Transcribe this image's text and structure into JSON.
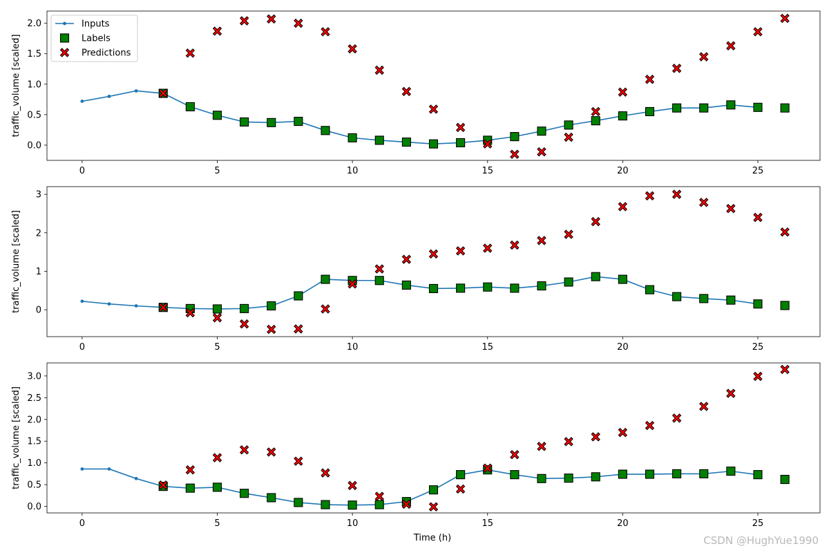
{
  "chart_data": {
    "type": "line",
    "xlabel": "Time (h)",
    "ylabel": "traffic_volume [scaled]",
    "xlim": [
      -1.3,
      27.3
    ],
    "xticks": [
      0,
      5,
      10,
      15,
      20,
      25
    ],
    "legend": {
      "location": "top-left",
      "entries": [
        "Inputs",
        "Labels",
        "Predictions"
      ]
    },
    "colors": {
      "inputs": "#1f77b4",
      "labels": "#008000",
      "predictions": "#ff0000",
      "edge": "#000000"
    },
    "watermark": "CSDN @HughYue1990",
    "panels": [
      {
        "ylim": [
          -0.25,
          2.2
        ],
        "yticks": [
          0.0,
          0.5,
          1.0,
          1.5,
          2.0
        ],
        "inputs": {
          "x": [
            0,
            1,
            2,
            3,
            4,
            5,
            6,
            7,
            8,
            9,
            10,
            11,
            12,
            13,
            14,
            15,
            16,
            17,
            18,
            19,
            20,
            21,
            22,
            23,
            24,
            25
          ],
          "y": [
            0.72,
            0.8,
            0.89,
            0.85,
            0.63,
            0.49,
            0.38,
            0.37,
            0.39,
            0.24,
            0.12,
            0.08,
            0.05,
            0.02,
            0.04,
            0.08,
            0.14,
            0.23,
            0.33,
            0.4,
            0.48,
            0.55,
            0.61,
            0.61,
            0.66,
            0.62
          ]
        },
        "labels": {
          "x": [
            3,
            4,
            5,
            6,
            7,
            8,
            9,
            10,
            11,
            12,
            13,
            14,
            15,
            16,
            17,
            18,
            19,
            20,
            21,
            22,
            23,
            24,
            25,
            26
          ],
          "y": [
            0.85,
            0.63,
            0.49,
            0.38,
            0.37,
            0.39,
            0.24,
            0.12,
            0.08,
            0.05,
            0.02,
            0.04,
            0.08,
            0.14,
            0.23,
            0.33,
            0.4,
            0.48,
            0.55,
            0.61,
            0.61,
            0.66,
            0.62,
            0.61
          ]
        },
        "predictions": {
          "x": [
            3,
            4,
            5,
            6,
            7,
            8,
            9,
            10,
            11,
            12,
            13,
            14,
            15,
            16,
            17,
            18,
            19,
            20,
            21,
            22,
            23,
            24,
            25,
            26
          ],
          "y": [
            0.85,
            1.51,
            1.87,
            2.04,
            2.07,
            2.0,
            1.86,
            1.58,
            1.23,
            0.88,
            0.59,
            0.29,
            0.02,
            -0.15,
            -0.11,
            0.13,
            0.55,
            0.87,
            1.08,
            1.26,
            1.45,
            1.63,
            1.86,
            2.08
          ]
        }
      },
      {
        "ylim": [
          -0.7,
          3.2
        ],
        "yticks": [
          0,
          1,
          2,
          3
        ],
        "inputs": {
          "x": [
            0,
            1,
            2,
            3,
            4,
            5,
            6,
            7,
            8,
            9,
            10,
            11,
            12,
            13,
            14,
            15,
            16,
            17,
            18,
            19,
            20,
            21,
            22,
            23,
            24,
            25
          ],
          "y": [
            0.22,
            0.15,
            0.1,
            0.06,
            0.03,
            0.02,
            0.03,
            0.1,
            0.36,
            0.79,
            0.76,
            0.76,
            0.64,
            0.55,
            0.56,
            0.59,
            0.56,
            0.62,
            0.72,
            0.86,
            0.79,
            0.52,
            0.34,
            0.29,
            0.25,
            0.15
          ]
        },
        "labels": {
          "x": [
            3,
            4,
            5,
            6,
            7,
            8,
            9,
            10,
            11,
            12,
            13,
            14,
            15,
            16,
            17,
            18,
            19,
            20,
            21,
            22,
            23,
            24,
            25,
            26
          ],
          "y": [
            0.06,
            0.03,
            0.02,
            0.03,
            0.1,
            0.36,
            0.79,
            0.76,
            0.76,
            0.64,
            0.55,
            0.56,
            0.59,
            0.56,
            0.62,
            0.72,
            0.86,
            0.79,
            0.52,
            0.34,
            0.29,
            0.25,
            0.15,
            0.11
          ]
        },
        "predictions": {
          "x": [
            3,
            4,
            5,
            6,
            7,
            8,
            9,
            10,
            11,
            12,
            13,
            14,
            15,
            16,
            17,
            18,
            19,
            20,
            21,
            22,
            23,
            24,
            25,
            26
          ],
          "y": [
            0.06,
            -0.08,
            -0.21,
            -0.37,
            -0.51,
            -0.5,
            0.02,
            0.67,
            1.06,
            1.31,
            1.45,
            1.53,
            1.6,
            1.68,
            1.8,
            1.96,
            2.29,
            2.68,
            2.96,
            3.0,
            2.79,
            2.63,
            2.4,
            2.02
          ]
        }
      },
      {
        "ylim": [
          -0.15,
          3.3
        ],
        "yticks": [
          0.0,
          0.5,
          1.0,
          1.5,
          2.0,
          2.5,
          3.0
        ],
        "inputs": {
          "x": [
            0,
            1,
            2,
            3,
            4,
            5,
            6,
            7,
            8,
            9,
            10,
            11,
            12,
            13,
            14,
            15,
            16,
            17,
            18,
            19,
            20,
            21,
            22,
            23,
            24,
            25
          ],
          "y": [
            0.86,
            0.86,
            0.64,
            0.46,
            0.42,
            0.44,
            0.3,
            0.2,
            0.09,
            0.04,
            0.03,
            0.04,
            0.11,
            0.38,
            0.73,
            0.84,
            0.73,
            0.64,
            0.65,
            0.68,
            0.74,
            0.74,
            0.75,
            0.75,
            0.81,
            0.73
          ]
        },
        "labels": {
          "x": [
            3,
            4,
            5,
            6,
            7,
            8,
            9,
            10,
            11,
            12,
            13,
            14,
            15,
            16,
            17,
            18,
            19,
            20,
            21,
            22,
            23,
            24,
            25,
            26
          ],
          "y": [
            0.46,
            0.42,
            0.44,
            0.3,
            0.2,
            0.09,
            0.04,
            0.03,
            0.04,
            0.11,
            0.38,
            0.73,
            0.84,
            0.73,
            0.64,
            0.65,
            0.68,
            0.74,
            0.74,
            0.75,
            0.75,
            0.81,
            0.73,
            0.62
          ]
        },
        "predictions": {
          "x": [
            3,
            4,
            5,
            6,
            7,
            8,
            9,
            10,
            11,
            12,
            13,
            14,
            15,
            16,
            17,
            18,
            19,
            20,
            21,
            22,
            23,
            24,
            25,
            26
          ],
          "y": [
            0.49,
            0.84,
            1.12,
            1.3,
            1.25,
            1.04,
            0.77,
            0.48,
            0.23,
            0.05,
            -0.01,
            0.4,
            0.88,
            1.19,
            1.38,
            1.49,
            1.6,
            1.7,
            1.86,
            2.03,
            2.3,
            2.6,
            2.99,
            3.15
          ]
        }
      }
    ]
  }
}
